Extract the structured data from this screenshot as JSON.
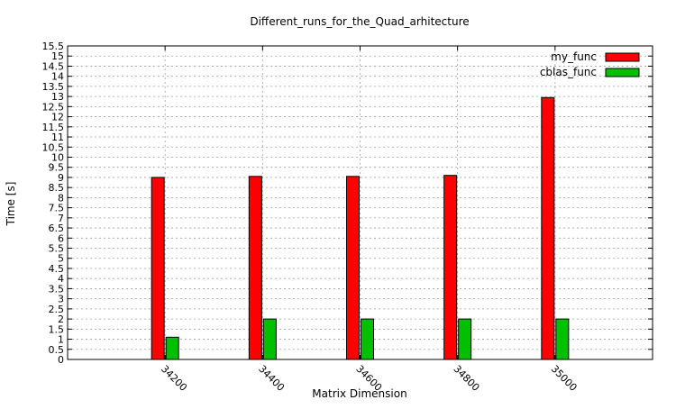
{
  "chart_data": {
    "type": "bar",
    "title": "Different_runs_for_the_Quad_arhitecture",
    "xlabel": "Matrix Dimension",
    "ylabel": "Time [s]",
    "categories": [
      "34200",
      "34400",
      "34600",
      "34800",
      "35000"
    ],
    "series": [
      {
        "name": "my_func",
        "color": "#ff0000",
        "values": [
          9.0,
          9.05,
          9.05,
          9.1,
          12.95
        ]
      },
      {
        "name": "cblas_func",
        "color": "#00c000",
        "values": [
          1.1,
          2.0,
          2.0,
          2.0,
          2.0
        ]
      }
    ],
    "ylim": [
      0,
      15.5
    ],
    "yticks": [
      "0",
      "0.5",
      "1",
      "1.5",
      "2",
      "2.5",
      "3",
      "3.5",
      "4",
      "4.5",
      "5",
      "5.5",
      "6",
      "6.5",
      "7",
      "7.5",
      "8",
      "8.5",
      "9",
      "9.5",
      "10",
      "10.5",
      "11",
      "11.5",
      "12",
      "12.5",
      "13",
      "13.5",
      "14",
      "14.5",
      "15",
      "15.5"
    ],
    "grid": true,
    "legend_position": "top-right"
  }
}
